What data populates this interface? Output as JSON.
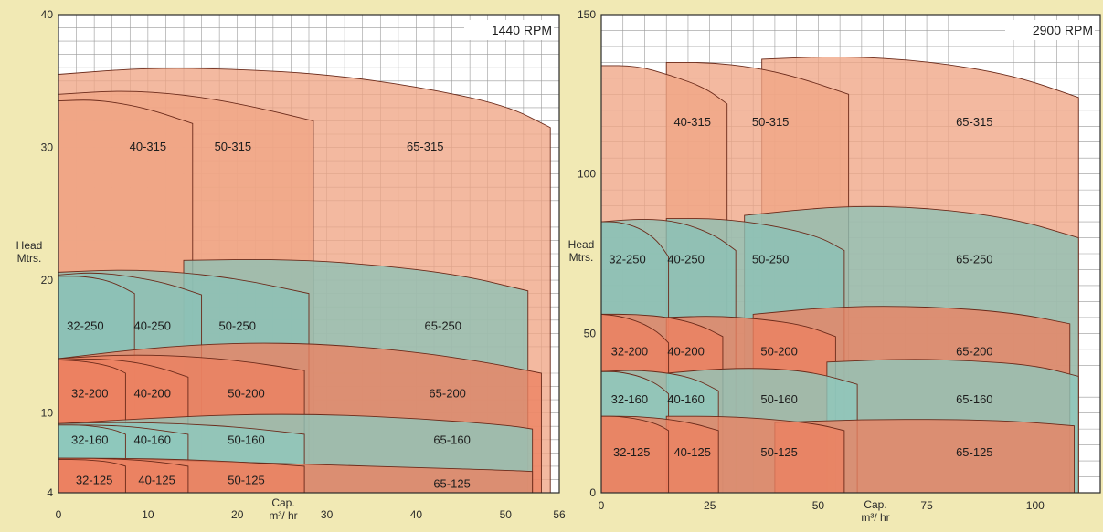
{
  "colors": {
    "page_background": "#f1e9b4",
    "plot_background": "#ffffff",
    "grid": "#9a9a9a",
    "series_315": "#f0a585",
    "series_250": "#8cc2b6",
    "series_200": "#ec8262",
    "series_160": "#8ec8bc",
    "series_125": "#ec8262",
    "outline": "#6b2a1a"
  },
  "chart_data": [
    {
      "type": "area",
      "title": "1440 RPM",
      "ylabel_line1": "Head",
      "ylabel_line2": "Mtrs.",
      "xlabel_line1": "Cap.",
      "xlabel_line2": "m³/ hr",
      "xlim": [
        0,
        56
      ],
      "ylim": [
        4,
        40
      ],
      "x_ticks": [
        0,
        10,
        20,
        30,
        40,
        50,
        56
      ],
      "y_ticks": [
        4,
        10,
        20,
        30,
        40
      ],
      "grid": true,
      "x_grid_step": 2,
      "y_grid_step": 1,
      "series": [
        {
          "name": "65-315",
          "group": "315",
          "x": [
            0,
            10,
            20,
            30,
            40,
            50,
            55
          ],
          "y": [
            35.5,
            36,
            35.9,
            35.5,
            34.6,
            33.2,
            31.5
          ]
        },
        {
          "name": "50-315",
          "group": "315",
          "x": [
            0,
            7,
            14,
            21,
            28.5
          ],
          "y": [
            34,
            34.3,
            34,
            33.2,
            32
          ]
        },
        {
          "name": "40-315",
          "group": "315",
          "x": [
            0,
            4,
            8,
            11,
            15
          ],
          "y": [
            33.5,
            33.6,
            33.2,
            32.7,
            31.8
          ]
        },
        {
          "name": "65-250",
          "group": "250",
          "x": [
            14,
            25,
            35,
            45,
            52.5
          ],
          "y": [
            21.5,
            21.6,
            21.2,
            20.4,
            19.2
          ]
        },
        {
          "name": "50-250",
          "group": "250",
          "x": [
            0,
            7,
            14,
            21,
            28
          ],
          "y": [
            20.6,
            20.8,
            20.6,
            20,
            19
          ]
        },
        {
          "name": "40-250",
          "group": "250",
          "x": [
            0,
            4,
            8,
            12,
            16
          ],
          "y": [
            20.4,
            20.6,
            20.3,
            19.8,
            18.9
          ]
        },
        {
          "name": "32-250",
          "group": "250",
          "x": [
            0,
            3,
            6,
            8.5
          ],
          "y": [
            20.3,
            20.3,
            19.9,
            19
          ]
        },
        {
          "name": "65-200",
          "group": "200",
          "x": [
            0,
            10,
            20,
            30,
            40,
            48,
            54
          ],
          "y": [
            14.1,
            14.9,
            15.3,
            15.2,
            14.6,
            13.8,
            13
          ]
        },
        {
          "name": "50-200",
          "group": "200",
          "x": [
            0,
            7,
            14,
            21,
            27.5
          ],
          "y": [
            14.1,
            14.4,
            14.3,
            13.9,
            13.2
          ]
        },
        {
          "name": "40-200",
          "group": "200",
          "x": [
            0,
            4,
            8,
            11.5,
            14.5
          ],
          "y": [
            14,
            14.1,
            13.9,
            13.4,
            12.7
          ]
        },
        {
          "name": "32-200",
          "group": "200",
          "x": [
            0,
            3,
            6,
            7.5
          ],
          "y": [
            14,
            13.9,
            13.5,
            13
          ]
        },
        {
          "name": "65-160",
          "group": "160",
          "x": [
            0,
            10,
            20,
            30,
            40,
            50,
            53
          ],
          "y": [
            9.2,
            9.6,
            9.9,
            9.9,
            9.6,
            9.1,
            8.8
          ]
        },
        {
          "name": "50-160",
          "group": "160",
          "x": [
            0,
            7,
            14,
            21,
            27.5
          ],
          "y": [
            9.2,
            9.3,
            9.2,
            8.9,
            8.4
          ]
        },
        {
          "name": "40-160",
          "group": "160",
          "x": [
            0,
            4,
            8,
            11.5,
            14.5
          ],
          "y": [
            9.1,
            9.1,
            9,
            8.7,
            8.4
          ]
        },
        {
          "name": "32-160",
          "group": "160",
          "x": [
            0,
            3,
            6,
            7.5
          ],
          "y": [
            9.1,
            9.1,
            8.8,
            8.4
          ]
        },
        {
          "name": "65-125",
          "group": "125",
          "x": [
            0,
            10,
            20,
            30,
            40,
            50,
            53
          ],
          "y": [
            6.6,
            6.5,
            6.3,
            6.1,
            5.9,
            5.7,
            5.6
          ]
        },
        {
          "name": "50-125",
          "group": "125",
          "x": [
            0,
            7,
            14,
            21,
            27.5
          ],
          "y": [
            6.6,
            6.6,
            6.5,
            6.3,
            6
          ]
        },
        {
          "name": "40-125",
          "group": "125",
          "x": [
            0,
            4,
            8,
            11.5,
            14.5
          ],
          "y": [
            6.6,
            6.6,
            6.5,
            6.3,
            6
          ]
        },
        {
          "name": "32-125",
          "group": "125",
          "x": [
            0,
            3,
            6,
            7.5
          ],
          "y": [
            6.5,
            6.5,
            6.3,
            6
          ]
        }
      ],
      "annotations": [
        {
          "text": "40-315",
          "x": 10,
          "y": 30
        },
        {
          "text": "50-315",
          "x": 19.5,
          "y": 30
        },
        {
          "text": "65-315",
          "x": 41,
          "y": 30
        },
        {
          "text": "32-250",
          "x": 3,
          "y": 16.5
        },
        {
          "text": "40-250",
          "x": 10.5,
          "y": 16.5
        },
        {
          "text": "50-250",
          "x": 20,
          "y": 16.5
        },
        {
          "text": "65-250",
          "x": 43,
          "y": 16.5
        },
        {
          "text": "32-200",
          "x": 3.5,
          "y": 11.4
        },
        {
          "text": "40-200",
          "x": 10.5,
          "y": 11.4
        },
        {
          "text": "50-200",
          "x": 21,
          "y": 11.4
        },
        {
          "text": "65-200",
          "x": 43.5,
          "y": 11.4
        },
        {
          "text": "32-160",
          "x": 3.5,
          "y": 7.9
        },
        {
          "text": "40-160",
          "x": 10.5,
          "y": 7.9
        },
        {
          "text": "50-160",
          "x": 21,
          "y": 7.9
        },
        {
          "text": "65-160",
          "x": 44,
          "y": 7.9
        },
        {
          "text": "32-125",
          "x": 4,
          "y": 4.9
        },
        {
          "text": "40-125",
          "x": 11,
          "y": 4.9
        },
        {
          "text": "50-125",
          "x": 21,
          "y": 4.9
        },
        {
          "text": "65-125",
          "x": 44,
          "y": 4.6
        }
      ]
    },
    {
      "type": "area",
      "title": "2900 RPM",
      "ylabel_line1": "Head",
      "ylabel_line2": "Mtrs.",
      "xlabel_line1": "Cap.",
      "xlabel_line2": "m³/ hr",
      "xlim": [
        0,
        115
      ],
      "ylim": [
        0,
        150
      ],
      "x_ticks": [
        0,
        25,
        50,
        75,
        100
      ],
      "y_ticks": [
        0,
        50,
        100,
        150
      ],
      "grid": true,
      "x_grid_step": 5,
      "y_grid_step": 5,
      "series": [
        {
          "name": "65-315",
          "group": "315",
          "x": [
            37,
            55,
            75,
            95,
            110
          ],
          "y": [
            136,
            137,
            135.5,
            131,
            124
          ]
        },
        {
          "name": "50-315",
          "group": "315",
          "x": [
            15,
            25,
            35,
            45,
            57
          ],
          "y": [
            135,
            135,
            133.5,
            130.5,
            125
          ]
        },
        {
          "name": "40-315",
          "group": "315",
          "x": [
            0,
            8,
            16,
            24,
            29
          ],
          "y": [
            134,
            134,
            131,
            127,
            122
          ]
        },
        {
          "name": "65-250",
          "group": "250",
          "x": [
            33,
            55,
            75,
            95,
            110
          ],
          "y": [
            87,
            90,
            89.5,
            86,
            80
          ]
        },
        {
          "name": "50-250",
          "group": "250",
          "x": [
            15,
            27,
            39,
            50,
            56
          ],
          "y": [
            86,
            86,
            84,
            80.5,
            76
          ]
        },
        {
          "name": "40-250",
          "group": "250",
          "x": [
            0,
            10,
            18,
            26,
            31
          ],
          "y": [
            85,
            86,
            85,
            81,
            76
          ]
        },
        {
          "name": "32-250",
          "group": "250",
          "x": [
            0,
            4,
            9,
            13,
            15.5
          ],
          "y": [
            85,
            85,
            83,
            79,
            74
          ]
        },
        {
          "name": "65-200",
          "group": "200",
          "x": [
            35,
            55,
            75,
            95,
            108
          ],
          "y": [
            56,
            58.5,
            58.5,
            56.5,
            53
          ]
        },
        {
          "name": "50-200",
          "group": "200",
          "x": [
            15,
            26,
            37,
            47,
            54
          ],
          "y": [
            55,
            55.5,
            54.5,
            52.5,
            49
          ]
        },
        {
          "name": "40-200",
          "group": "200",
          "x": [
            0,
            8,
            16,
            23,
            28
          ],
          "y": [
            56,
            56,
            55,
            52.5,
            49
          ]
        },
        {
          "name": "32-200",
          "group": "200",
          "x": [
            0,
            4,
            9,
            13,
            15.5
          ],
          "y": [
            56,
            55.5,
            53.5,
            50.5,
            47
          ]
        },
        {
          "name": "65-160",
          "group": "160",
          "x": [
            52,
            70,
            85,
            100,
            110
          ],
          "y": [
            41,
            42,
            41.5,
            40,
            36.5
          ]
        },
        {
          "name": "50-160",
          "group": "160",
          "x": [
            15,
            28,
            40,
            50,
            59
          ],
          "y": [
            37.5,
            39,
            39,
            37.5,
            34
          ]
        },
        {
          "name": "40-160",
          "group": "160",
          "x": [
            0,
            8,
            16,
            22,
            27
          ],
          "y": [
            38,
            38.5,
            37.5,
            35.5,
            32
          ]
        },
        {
          "name": "32-160",
          "group": "160",
          "x": [
            0,
            4,
            9,
            13,
            15.5
          ],
          "y": [
            38,
            38,
            36.5,
            34,
            31
          ]
        },
        {
          "name": "65-125",
          "group": "125",
          "x": [
            40,
            60,
            80,
            95,
            109
          ],
          "y": [
            22,
            23,
            23,
            22.5,
            21
          ]
        },
        {
          "name": "50-125",
          "group": "125",
          "x": [
            15,
            28,
            40,
            50,
            56
          ],
          "y": [
            24,
            24,
            23,
            21.5,
            19.5
          ]
        },
        {
          "name": "40-125",
          "group": "125",
          "x": [
            0,
            8,
            16,
            22,
            27
          ],
          "y": [
            24,
            24,
            23,
            21.5,
            19.5
          ]
        },
        {
          "name": "32-125",
          "group": "125",
          "x": [
            0,
            4,
            9,
            13,
            15.5
          ],
          "y": [
            24,
            24,
            23,
            21.5,
            19.5
          ]
        }
      ],
      "annotations": [
        {
          "text": "40-315",
          "x": 21,
          "y": 116
        },
        {
          "text": "50-315",
          "x": 39,
          "y": 116
        },
        {
          "text": "65-315",
          "x": 86,
          "y": 116
        },
        {
          "text": "32-250",
          "x": 6,
          "y": 73
        },
        {
          "text": "40-250",
          "x": 19.5,
          "y": 73
        },
        {
          "text": "50-250",
          "x": 39,
          "y": 73
        },
        {
          "text": "65-250",
          "x": 86,
          "y": 73
        },
        {
          "text": "32-200",
          "x": 6.5,
          "y": 44
        },
        {
          "text": "40-200",
          "x": 19.5,
          "y": 44
        },
        {
          "text": "50-200",
          "x": 41,
          "y": 44
        },
        {
          "text": "65-200",
          "x": 86,
          "y": 44
        },
        {
          "text": "32-160",
          "x": 6.5,
          "y": 29
        },
        {
          "text": "40-160",
          "x": 19.5,
          "y": 29
        },
        {
          "text": "50-160",
          "x": 41,
          "y": 29
        },
        {
          "text": "65-160",
          "x": 86,
          "y": 29
        },
        {
          "text": "32-125",
          "x": 7,
          "y": 12.5
        },
        {
          "text": "40-125",
          "x": 21,
          "y": 12.5
        },
        {
          "text": "50-125",
          "x": 41,
          "y": 12.5
        },
        {
          "text": "65-125",
          "x": 86,
          "y": 12.5
        }
      ]
    }
  ]
}
